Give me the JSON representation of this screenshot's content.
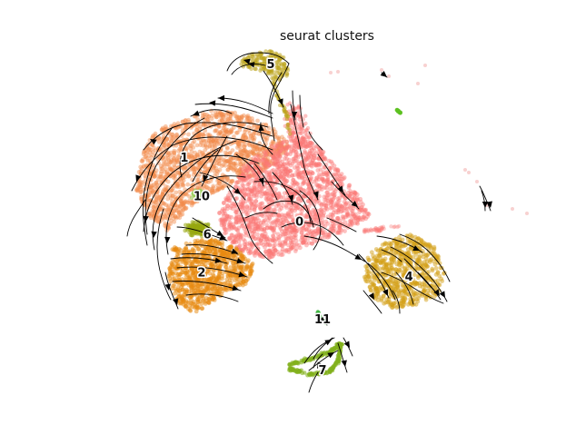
{
  "chart_data": {
    "type": "scatter",
    "title": "seurat clusters",
    "xlabel": "",
    "ylabel": "",
    "axes_visible": false,
    "grid": false,
    "legend": "on data",
    "overlay": "velocity streamlines",
    "colors": {
      "0": "#fa7876",
      "1": "#f28a4a",
      "2": "#e8890f",
      "4": "#d3a016",
      "5": "#bca31a",
      "6": "#98a80f",
      "7": "#82b01c",
      "10": "#9acd5a",
      "11": "#3cb53e",
      "stray_green": "#5cc020",
      "stray_pink": "#f4b3b0"
    },
    "clusters": [
      {
        "label": "0",
        "x": 0.52,
        "y": 0.52
      },
      {
        "label": "1",
        "x": 0.32,
        "y": 0.37
      },
      {
        "label": "10",
        "x": 0.35,
        "y": 0.46
      },
      {
        "label": "6",
        "x": 0.36,
        "y": 0.55
      },
      {
        "label": "2",
        "x": 0.35,
        "y": 0.64
      },
      {
        "label": "5",
        "x": 0.47,
        "y": 0.15
      },
      {
        "label": "4",
        "x": 0.71,
        "y": 0.65
      },
      {
        "label": "11",
        "x": 0.56,
        "y": 0.75
      },
      {
        "label": "7",
        "x": 0.56,
        "y": 0.87
      }
    ]
  }
}
